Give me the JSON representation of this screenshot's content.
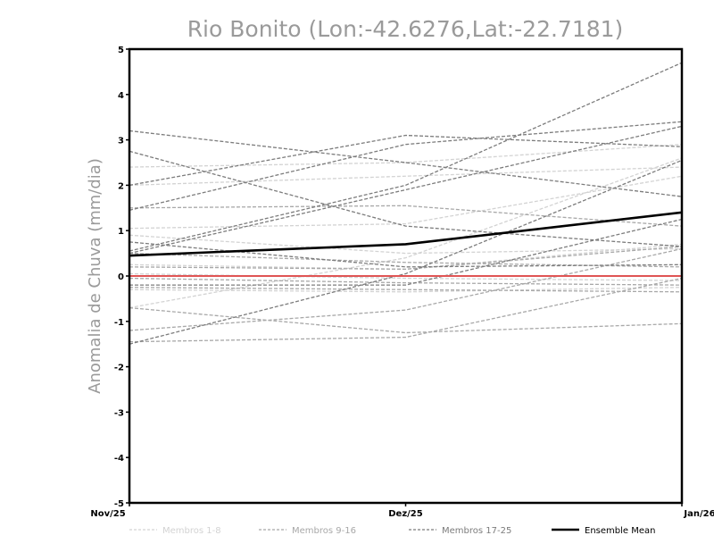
{
  "chart_data": {
    "type": "line",
    "title": "Rio Bonito (Lon:-42.6276,Lat:-22.7181)",
    "ylabel": "Anomalia de Chuva (mm/dia)",
    "xlabel": "",
    "categories": [
      "Nov/25",
      "Dez/25",
      "Jan/26"
    ],
    "ylim": [
      -5,
      5
    ],
    "yticks": [
      -5,
      -4,
      -3,
      -2,
      -1,
      0,
      1,
      2,
      3,
      4,
      5
    ],
    "ytick_labels": [
      "-5",
      "-4",
      "-3",
      "-2",
      "-1",
      "0",
      "1",
      "2",
      "3",
      "4",
      "5"
    ],
    "grid": false,
    "legend_position": "bottom",
    "colors": {
      "group1": "#d3d3d3",
      "group2": "#a8a8a8",
      "group3": "#7c7c7c",
      "mean": "#000000",
      "zero_line": "#e05555",
      "axis": "#000000"
    },
    "legend": [
      {
        "label": "Membros 1-8",
        "group": "group1"
      },
      {
        "label": "Membros 9-16",
        "group": "group2"
      },
      {
        "label": "Membros 17-25",
        "group": "group3"
      },
      {
        "label": "Ensemble Mean",
        "group": "mean"
      }
    ],
    "series": [
      {
        "group": "group1",
        "values": [
          2.4,
          2.5,
          2.9
        ]
      },
      {
        "group": "group1",
        "values": [
          2.0,
          2.2,
          2.4
        ]
      },
      {
        "group": "group1",
        "values": [
          1.05,
          1.15,
          2.2
        ]
      },
      {
        "group": "group1",
        "values": [
          0.9,
          0.5,
          0.6
        ]
      },
      {
        "group": "group1",
        "values": [
          0.25,
          0.15,
          0.7
        ]
      },
      {
        "group": "group1",
        "values": [
          0.05,
          -0.05,
          -0.1
        ]
      },
      {
        "group": "group1",
        "values": [
          -0.3,
          -0.35,
          -0.25
        ]
      },
      {
        "group": "group1",
        "values": [
          -0.7,
          0.4,
          2.6
        ]
      },
      {
        "group": "group2",
        "values": [
          1.5,
          1.55,
          1.1
        ]
      },
      {
        "group": "group2",
        "values": [
          0.5,
          0.3,
          0.2
        ]
      },
      {
        "group": "group2",
        "values": [
          0.2,
          0.15,
          0.65
        ]
      },
      {
        "group": "group2",
        "values": [
          -0.05,
          -0.15,
          -0.2
        ]
      },
      {
        "group": "group2",
        "values": [
          -0.25,
          -0.3,
          -0.35
        ]
      },
      {
        "group": "group2",
        "values": [
          -0.7,
          -1.25,
          -1.05
        ]
      },
      {
        "group": "group2",
        "values": [
          -1.2,
          -0.75,
          0.6
        ]
      },
      {
        "group": "group2",
        "values": [
          -1.45,
          -1.35,
          -0.05
        ]
      },
      {
        "group": "group3",
        "values": [
          3.2,
          2.5,
          1.75
        ]
      },
      {
        "group": "group3",
        "values": [
          2.75,
          1.1,
          0.65
        ]
      },
      {
        "group": "group3",
        "values": [
          2.0,
          3.1,
          2.85
        ]
      },
      {
        "group": "group3",
        "values": [
          1.45,
          2.9,
          3.4
        ]
      },
      {
        "group": "group3",
        "values": [
          0.75,
          0.2,
          0.25
        ]
      },
      {
        "group": "group3",
        "values": [
          0.55,
          2.0,
          4.7
        ]
      },
      {
        "group": "group3",
        "values": [
          0.5,
          1.9,
          3.3
        ]
      },
      {
        "group": "group3",
        "values": [
          -0.2,
          -0.2,
          1.25
        ]
      },
      {
        "group": "group3",
        "values": [
          -1.5,
          0.05,
          2.55
        ]
      },
      {
        "name": "Ensemble Mean",
        "group": "mean",
        "values": [
          0.45,
          0.7,
          1.4
        ]
      }
    ]
  }
}
